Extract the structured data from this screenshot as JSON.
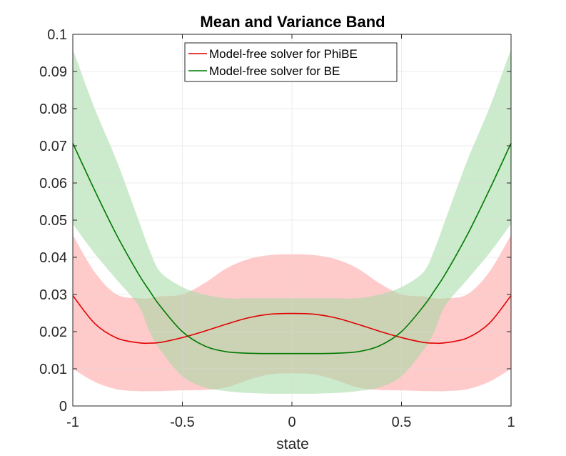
{
  "chart_data": {
    "type": "line",
    "title": "Mean and Variance Band",
    "xlabel": "state",
    "ylabel": "",
    "xlim": [
      -1,
      1
    ],
    "ylim": [
      0,
      0.1
    ],
    "xticks": [
      -1,
      -0.5,
      0,
      0.5,
      1
    ],
    "xtick_labels": [
      "-1",
      "-0.5",
      "0",
      "0.5",
      "1"
    ],
    "yticks": [
      0,
      0.01,
      0.02,
      0.03,
      0.04,
      0.05,
      0.06,
      0.07,
      0.08,
      0.09,
      0.1
    ],
    "ytick_labels": [
      "0",
      "0.01",
      "0.02",
      "0.03",
      "0.04",
      "0.05",
      "0.06",
      "0.07",
      "0.08",
      "0.09",
      "0.1"
    ],
    "grid": true,
    "legend_location": "top-center",
    "x": [
      -1,
      -0.9,
      -0.8,
      -0.7,
      -0.65,
      -0.6,
      -0.5,
      -0.4,
      -0.3,
      -0.2,
      -0.1,
      0,
      0.1,
      0.2,
      0.3,
      0.4,
      0.5,
      0.6,
      0.65,
      0.7,
      0.8,
      0.9,
      1
    ],
    "series": [
      {
        "name": "Model-free solver for PhiBE",
        "color": "#e00000",
        "band_color": "#ff9e9e",
        "mean": [
          0.0297,
          0.0222,
          0.0183,
          0.017,
          0.0169,
          0.0171,
          0.0184,
          0.0201,
          0.022,
          0.0237,
          0.0247,
          0.0249,
          0.0247,
          0.0237,
          0.022,
          0.0201,
          0.0184,
          0.0171,
          0.0169,
          0.017,
          0.0183,
          0.0222,
          0.0297
        ],
        "lower": [
          0.01,
          0.0065,
          0.0045,
          0.004,
          0.004,
          0.004,
          0.0042,
          0.0043,
          0.005,
          0.007,
          0.0085,
          0.0088,
          0.0085,
          0.007,
          0.005,
          0.0043,
          0.0042,
          0.004,
          0.004,
          0.004,
          0.0045,
          0.0065,
          0.01
        ],
        "upper": [
          0.046,
          0.036,
          0.03,
          0.029,
          0.029,
          0.0295,
          0.03,
          0.033,
          0.037,
          0.0395,
          0.0406,
          0.0408,
          0.0406,
          0.0395,
          0.037,
          0.033,
          0.03,
          0.0295,
          0.029,
          0.029,
          0.03,
          0.036,
          0.046
        ]
      },
      {
        "name": "Model-free solver for BE",
        "color": "#007a00",
        "band_color": "#a3d9a3",
        "mean": [
          0.0707,
          0.058,
          0.046,
          0.0355,
          0.031,
          0.0268,
          0.02,
          0.0162,
          0.0146,
          0.0142,
          0.0141,
          0.0141,
          0.0141,
          0.0142,
          0.0146,
          0.0162,
          0.02,
          0.0268,
          0.031,
          0.0355,
          0.046,
          0.058,
          0.0707
        ],
        "lower": [
          0.049,
          0.041,
          0.034,
          0.027,
          0.02,
          0.015,
          0.008,
          0.005,
          0.004,
          0.0035,
          0.0033,
          0.0033,
          0.0033,
          0.0035,
          0.004,
          0.005,
          0.008,
          0.015,
          0.02,
          0.027,
          0.034,
          0.041,
          0.049
        ],
        "upper": [
          0.096,
          0.08,
          0.066,
          0.05,
          0.042,
          0.036,
          0.032,
          0.03,
          0.029,
          0.029,
          0.029,
          0.029,
          0.029,
          0.029,
          0.029,
          0.03,
          0.032,
          0.036,
          0.042,
          0.05,
          0.066,
          0.08,
          0.096
        ]
      }
    ]
  }
}
